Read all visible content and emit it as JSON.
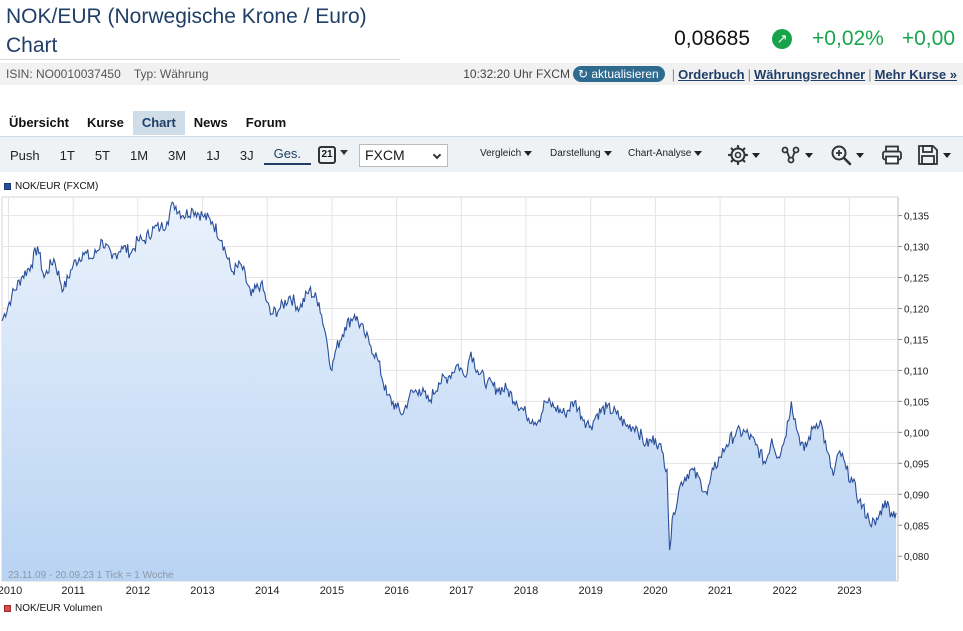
{
  "header": {
    "title_line1": "NOK/EUR (Norwegische Krone / Euro)",
    "title_line2": "Chart",
    "price": "0,08685",
    "change_pct": "+0,02%",
    "change_abs": "+0,00",
    "trend_icon": "arrow-up-right-icon",
    "up_color": "#18a54b"
  },
  "meta": {
    "isin": "ISIN: NO0010037450",
    "type": "Typ: Währung",
    "time": "10:32:20 Uhr FXCM",
    "refresh_label": "aktualisieren",
    "links": [
      "Orderbuch",
      "Währungsrechner",
      "Mehr Kurse »"
    ]
  },
  "tabs": [
    {
      "label": "Übersicht"
    },
    {
      "label": "Kurse"
    },
    {
      "label": "Chart",
      "active": true
    },
    {
      "label": "News"
    },
    {
      "label": "Forum"
    }
  ],
  "toolbar": {
    "periods": [
      "Push",
      "1T",
      "5T",
      "1M",
      "3M",
      "1J",
      "3J",
      "Ges."
    ],
    "active_period": "Ges.",
    "calendar_day": "21",
    "exchange_select": "FXCM",
    "dropdowns": [
      "Vergleich",
      "Darstellung",
      "Chart-Analyse"
    ],
    "icons": [
      "settings-icon",
      "indicator-icon",
      "zoom-icon",
      "print-icon",
      "save-icon"
    ]
  },
  "chart_data": {
    "type": "area",
    "series_name": "NOK/EUR (FXCM)",
    "volume_label": "NOK/EUR Volumen",
    "footnote": "23.11.09 - 20.09.23   1 Tick = 1 Woche",
    "x_ticks": [
      "2010",
      "2011",
      "2012",
      "2013",
      "2014",
      "2015",
      "2016",
      "2017",
      "2018",
      "2019",
      "2020",
      "2021",
      "2022",
      "2023"
    ],
    "y_ticks": [
      "0,135",
      "0,130",
      "0,125",
      "0,120",
      "0,115",
      "0,110",
      "0,105",
      "0,100",
      "0,095",
      "0,090",
      "0,085",
      "0,080"
    ],
    "ylim": [
      0.076,
      0.138
    ],
    "xlim": [
      2009.9,
      2023.75
    ],
    "line_color": "#2a4f9a",
    "fill_top_color": "#eaf2fc",
    "fill_bottom_color": "#b9d3f3",
    "points": [
      [
        2009.9,
        0.118
      ],
      [
        2010.05,
        0.122
      ],
      [
        2010.2,
        0.125
      ],
      [
        2010.35,
        0.127
      ],
      [
        2010.45,
        0.13
      ],
      [
        2010.55,
        0.125
      ],
      [
        2010.7,
        0.128
      ],
      [
        2010.85,
        0.123
      ],
      [
        2011.0,
        0.127
      ],
      [
        2011.15,
        0.129
      ],
      [
        2011.3,
        0.128
      ],
      [
        2011.45,
        0.131
      ],
      [
        2011.6,
        0.128
      ],
      [
        2011.75,
        0.13
      ],
      [
        2011.9,
        0.129
      ],
      [
        2012.0,
        0.131
      ],
      [
        2012.1,
        0.131
      ],
      [
        2012.25,
        0.133
      ],
      [
        2012.35,
        0.133
      ],
      [
        2012.45,
        0.134
      ],
      [
        2012.55,
        0.137
      ],
      [
        2012.7,
        0.135
      ],
      [
        2012.85,
        0.136
      ],
      [
        2013.0,
        0.135
      ],
      [
        2013.15,
        0.134
      ],
      [
        2013.3,
        0.131
      ],
      [
        2013.45,
        0.126
      ],
      [
        2013.6,
        0.127
      ],
      [
        2013.75,
        0.122
      ],
      [
        2013.9,
        0.124
      ],
      [
        2014.0,
        0.121
      ],
      [
        2014.05,
        0.119
      ],
      [
        2014.2,
        0.12
      ],
      [
        2014.35,
        0.122
      ],
      [
        2014.5,
        0.12
      ],
      [
        2014.65,
        0.123
      ],
      [
        2014.8,
        0.121
      ],
      [
        2014.9,
        0.116
      ],
      [
        2015.0,
        0.11
      ],
      [
        2015.05,
        0.113
      ],
      [
        2015.2,
        0.117
      ],
      [
        2015.35,
        0.119
      ],
      [
        2015.5,
        0.116
      ],
      [
        2015.6,
        0.114
      ],
      [
        2015.7,
        0.112
      ],
      [
        2015.85,
        0.106
      ],
      [
        2016.0,
        0.104
      ],
      [
        2016.1,
        0.103
      ],
      [
        2016.2,
        0.106
      ],
      [
        2016.35,
        0.107
      ],
      [
        2016.5,
        0.105
      ],
      [
        2016.65,
        0.108
      ],
      [
        2016.8,
        0.109
      ],
      [
        2016.95,
        0.111
      ],
      [
        2017.05,
        0.109
      ],
      [
        2017.15,
        0.113
      ],
      [
        2017.25,
        0.11
      ],
      [
        2017.4,
        0.108
      ],
      [
        2017.55,
        0.107
      ],
      [
        2017.7,
        0.107
      ],
      [
        2017.85,
        0.105
      ],
      [
        2018.0,
        0.103
      ],
      [
        2018.1,
        0.102
      ],
      [
        2018.2,
        0.102
      ],
      [
        2018.3,
        0.105
      ],
      [
        2018.45,
        0.104
      ],
      [
        2018.6,
        0.103
      ],
      [
        2018.75,
        0.105
      ],
      [
        2018.9,
        0.102
      ],
      [
        2019.0,
        0.101
      ],
      [
        2019.1,
        0.103
      ],
      [
        2019.25,
        0.104
      ],
      [
        2019.4,
        0.103
      ],
      [
        2019.55,
        0.101
      ],
      [
        2019.7,
        0.101
      ],
      [
        2019.85,
        0.098
      ],
      [
        2020.0,
        0.099
      ],
      [
        2020.05,
        0.098
      ],
      [
        2020.1,
        0.097
      ],
      [
        2020.18,
        0.094
      ],
      [
        2020.22,
        0.081
      ],
      [
        2020.28,
        0.087
      ],
      [
        2020.4,
        0.092
      ],
      [
        2020.55,
        0.094
      ],
      [
        2020.7,
        0.092
      ],
      [
        2020.8,
        0.09
      ],
      [
        2020.9,
        0.094
      ],
      [
        2021.0,
        0.096
      ],
      [
        2021.1,
        0.098
      ],
      [
        2021.25,
        0.1
      ],
      [
        2021.4,
        0.1
      ],
      [
        2021.55,
        0.098
      ],
      [
        2021.7,
        0.095
      ],
      [
        2021.8,
        0.099
      ],
      [
        2021.9,
        0.096
      ],
      [
        2022.0,
        0.099
      ],
      [
        2022.1,
        0.105
      ],
      [
        2022.2,
        0.1
      ],
      [
        2022.3,
        0.097
      ],
      [
        2022.45,
        0.101
      ],
      [
        2022.55,
        0.102
      ],
      [
        2022.65,
        0.097
      ],
      [
        2022.75,
        0.093
      ],
      [
        2022.85,
        0.097
      ],
      [
        2022.95,
        0.094
      ],
      [
        2023.05,
        0.092
      ],
      [
        2023.15,
        0.089
      ],
      [
        2023.3,
        0.086
      ],
      [
        2023.4,
        0.085
      ],
      [
        2023.55,
        0.089
      ],
      [
        2023.65,
        0.087
      ],
      [
        2023.72,
        0.087
      ]
    ]
  }
}
